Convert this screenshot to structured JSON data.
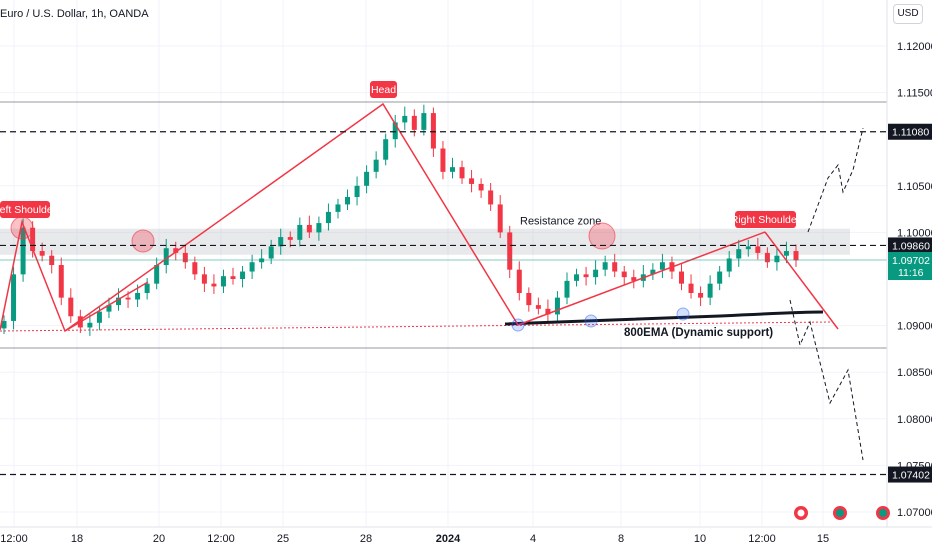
{
  "header": {
    "symbol_title": "Euro / U.S. Dollar, 1h, OANDA",
    "currency_button": "USD"
  },
  "chart_data": {
    "type": "candlestick",
    "ylim": [
      1.068,
      1.126
    ],
    "y_ticks": [
      "1.12000",
      "1.11500",
      "1.10500",
      "1.10000",
      "1.09000",
      "1.08500",
      "1.08000",
      "1.07500",
      "1.07000"
    ],
    "x_ticks": [
      "12:00",
      "18",
      "20",
      "12:00",
      "25",
      "28",
      "2024",
      "4",
      "8",
      "10",
      "12:00",
      "15"
    ],
    "horizontal_levels": [
      {
        "price": 1.1108,
        "label": "1.11080",
        "style": "dashed"
      },
      {
        "price": 1.0986,
        "label": "1.09860",
        "style": "dashed"
      },
      {
        "price": 1.07402,
        "label": "1.07402",
        "style": "dashed"
      }
    ],
    "last_price": {
      "label": "1.09702",
      "countdown": "11:16",
      "price": 1.09702
    },
    "resistance_zone": {
      "label": "Resistance zone",
      "low": 1.0976,
      "high": 1.1004
    },
    "ema_label": "800EMA (Dynamic support)",
    "annotations": [
      "Left Shoulder",
      "Head",
      "Right Shoulder"
    ],
    "pattern_points": [
      {
        "t": 0,
        "p": 1.09
      },
      {
        "t": 22,
        "p": 1.101
      },
      {
        "t": 70,
        "p": 1.0895
      },
      {
        "t": 383,
        "p": 1.1138
      },
      {
        "t": 518,
        "p": 1.0905
      },
      {
        "t": 765,
        "p": 1.1003
      },
      {
        "t": 838,
        "p": 1.0895
      }
    ],
    "candles_close": [
      1.0905,
      1.0955,
      1.1005,
      1.098,
      1.0975,
      1.0965,
      1.093,
      1.091,
      1.0898,
      1.0903,
      1.0915,
      1.0922,
      1.093,
      1.0928,
      1.0935,
      1.0945,
      1.0965,
      1.0983,
      1.0978,
      1.0968,
      1.0955,
      1.0945,
      1.0942,
      1.0953,
      1.095,
      1.0958,
      1.0968,
      1.0972,
      1.0985,
      1.0995,
      1.0992,
      1.1008,
      1.1,
      1.101,
      1.1022,
      1.103,
      1.1038,
      1.105,
      1.1065,
      1.1078,
      1.11,
      1.1118,
      1.1125,
      1.111,
      1.1128,
      1.109,
      1.1065,
      1.107,
      1.1058,
      1.1052,
      1.1045,
      1.103,
      1.1,
      1.096,
      1.0935,
      1.0922,
      1.0918,
      1.0912,
      1.093,
      1.0948,
      1.0955,
      1.0952,
      1.096,
      1.0968,
      1.0958,
      1.0952,
      1.0948,
      1.0955,
      1.096,
      1.0968,
      1.0958,
      1.0945,
      1.0935,
      1.093,
      1.0945,
      1.0958,
      1.0972,
      1.0982,
      1.0985,
      1.0978,
      1.0968,
      1.0975,
      1.098,
      1.097
    ]
  }
}
